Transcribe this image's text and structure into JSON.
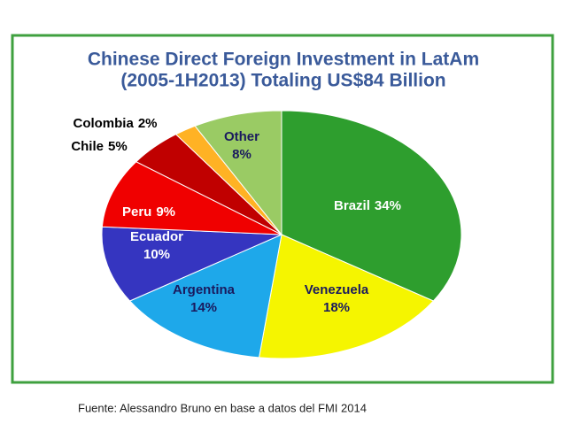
{
  "chart_data": {
    "type": "pie",
    "title": "Chinese Direct Foreign Investment in LatAm",
    "subtitle": "(2005-1H2013) Totaling US$84 Billion",
    "categories": [
      "Brazil",
      "Venezuela",
      "Argentina",
      "Ecuador",
      "Peru",
      "Chile",
      "Colombia",
      "Other"
    ],
    "values": [
      34,
      18,
      14,
      10,
      9,
      5,
      2,
      8
    ],
    "value_labels": [
      "34%",
      "18%",
      "14%",
      "10%",
      "9%",
      "5%",
      "2%",
      "8%"
    ],
    "colors": [
      "#2e9e2e",
      "#f5f500",
      "#1ea8ea",
      "#3535c0",
      "#f00000",
      "#c00000",
      "#ffb224",
      "#9acb64"
    ],
    "source": "Fuente: Alessandro Bruno en base a datos del FMI 2014"
  }
}
